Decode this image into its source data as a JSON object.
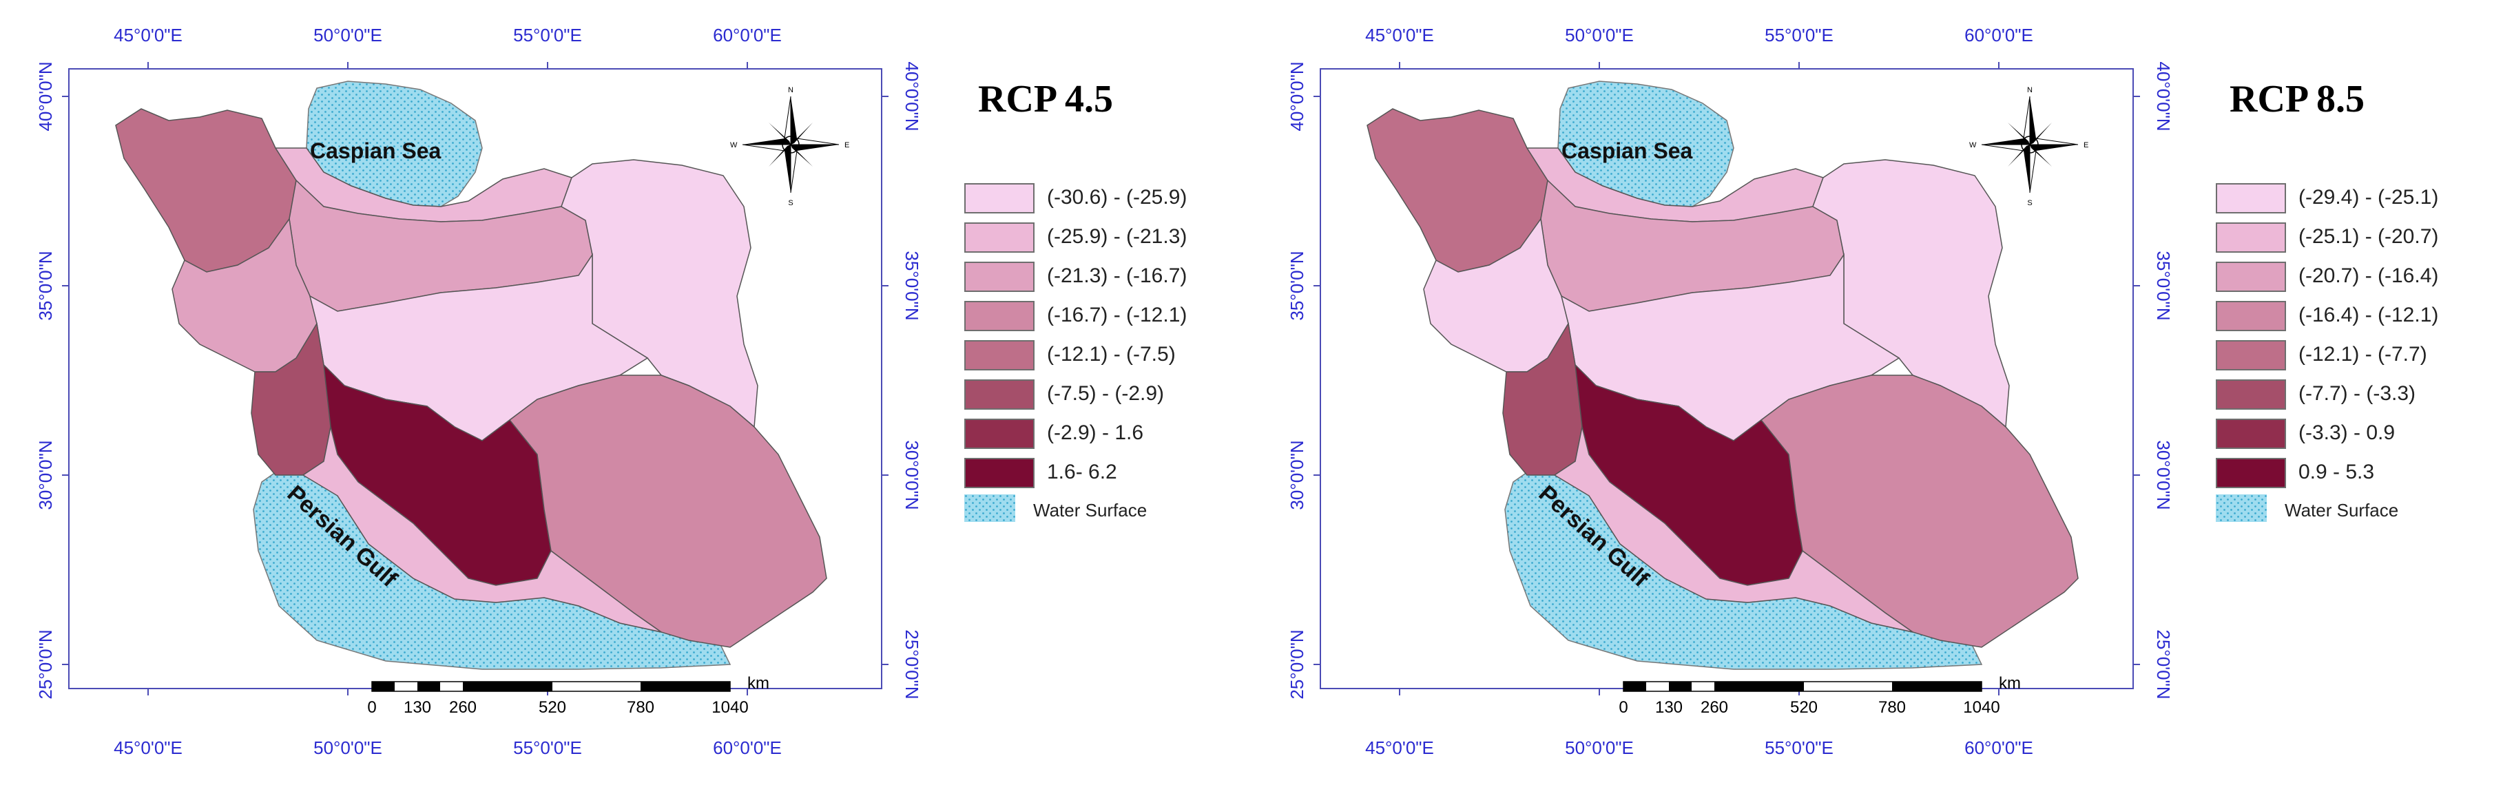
{
  "axis_labels": {
    "longitudes": [
      "45°0'0\"E",
      "50°0'0\"E",
      "55°0'0\"E",
      "60°0'0\"E"
    ],
    "latitudes": [
      "40°0'0\"N",
      "35°0'0\"N",
      "30°0'0\"N",
      "25°0'0\"N"
    ]
  },
  "map_labels": {
    "caspian": "Caspian Sea",
    "gulf": "Persian Gulf"
  },
  "compass": {
    "n": "N",
    "e": "E",
    "s": "S",
    "w": "W"
  },
  "scale_bar": {
    "unit": "km",
    "ticks": [
      "0",
      "130",
      "260",
      "520",
      "780",
      "1040"
    ]
  },
  "water_label": "Water Surface",
  "colors": {
    "water": "#9fdcef",
    "water_dots": "#3aa9cf",
    "class_colors": [
      "#f6d2ee",
      "#edb8d7",
      "#e0a2c0",
      "#d089a5",
      "#be6f89",
      "#a54f6a",
      "#912e4e",
      "#7a0b33"
    ]
  },
  "panels": [
    {
      "title": "RCP 4.5",
      "legend": [
        "(-30.6) - (-25.9)",
        "(-25.9) - (-21.3)",
        "(-21.3) - (-16.7)",
        "(-16.7) - (-12.1)",
        "(-12.1) - (-7.5)",
        "(-7.5) - (-2.9)",
        "(-2.9) - 1.6",
        "1.6- 6.2"
      ],
      "region_classes": {
        "northwest": 4,
        "north": 2,
        "caspian_strip": 1,
        "west": 2,
        "central": 0,
        "northeast": 0,
        "zagros": 5,
        "southwest": 7,
        "southeast": 3,
        "south_coast": 1
      }
    },
    {
      "title": "RCP 8.5",
      "legend": [
        "(-29.4) - (-25.1)",
        "(-25.1) - (-20.7)",
        "(-20.7) - (-16.4)",
        "(-16.4) - (-12.1)",
        "(-12.1) - (-7.7)",
        "(-7.7) - (-3.3)",
        "(-3.3) - 0.9",
        "0.9 - 5.3"
      ],
      "region_classes": {
        "northwest": 4,
        "north": 2,
        "caspian_strip": 1,
        "west": 0,
        "central": 0,
        "northeast": 0,
        "zagros": 5,
        "southwest": 7,
        "southeast": 3,
        "south_coast": 1
      }
    }
  ]
}
